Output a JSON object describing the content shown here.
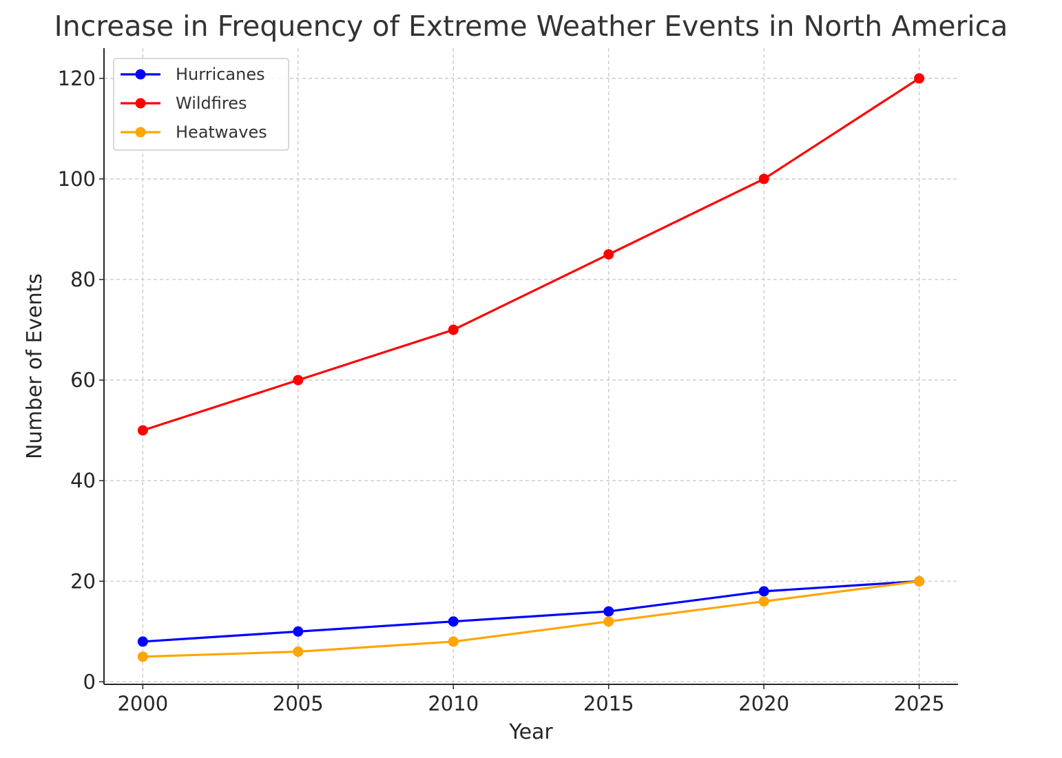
{
  "chart_data": {
    "type": "line",
    "title": "Increase in Frequency of Extreme Weather Events in North America",
    "xlabel": "Year",
    "ylabel": "Number of Events",
    "x": [
      2000,
      2005,
      2010,
      2015,
      2020,
      2025
    ],
    "xticks": [
      "2000",
      "2005",
      "2010",
      "2015",
      "2020",
      "2025"
    ],
    "yticks": [
      "0",
      "20",
      "40",
      "60",
      "80",
      "100",
      "120"
    ],
    "xlim": [
      1998.75,
      2026.25
    ],
    "ylim": [
      -0.5,
      126
    ],
    "grid": true,
    "legend_position": "top-left",
    "series": [
      {
        "name": "Hurricanes",
        "color": "#0000ff",
        "values": [
          8,
          10,
          12,
          14,
          18,
          20
        ]
      },
      {
        "name": "Wildfires",
        "color": "#ff0000",
        "values": [
          50,
          60,
          70,
          85,
          100,
          120
        ]
      },
      {
        "name": "Heatwaves",
        "color": "#ffa500",
        "values": [
          5,
          6,
          8,
          12,
          16,
          20
        ]
      }
    ]
  }
}
